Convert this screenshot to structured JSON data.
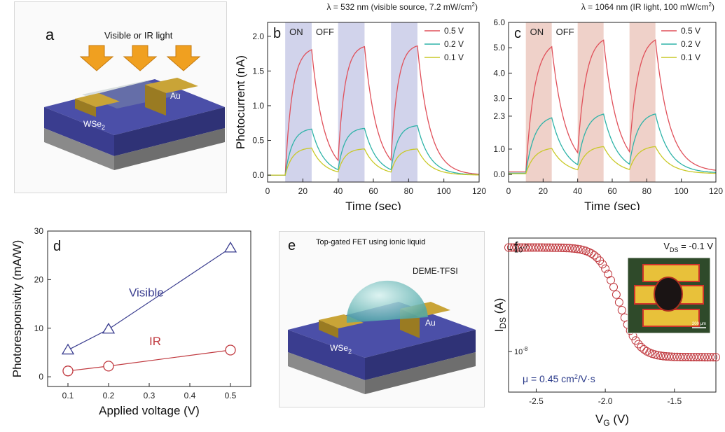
{
  "chart_data": [
    {
      "panel": "a",
      "type": "illustration",
      "label": "a",
      "texts": {
        "light": "Visible or IR light",
        "material": "WSe",
        "material_sub": "2",
        "contact": "Au"
      }
    },
    {
      "panel": "b",
      "type": "line",
      "label": "b",
      "title_parts": [
        "λ = 532 nm (visible source, 7.2 mW/cm",
        "2",
        ")"
      ],
      "xlabel": "Time (sec)",
      "ylabel": "Photocurrent (nA)",
      "xlim": [
        0,
        120
      ],
      "ylim": [
        -0.1,
        2.2
      ],
      "xticks": [
        0,
        20,
        40,
        60,
        80,
        100,
        120
      ],
      "yticks": [
        0.0,
        0.5,
        1.0,
        1.5,
        2.0
      ],
      "on_label": "ON",
      "off_label": "OFF",
      "on_intervals": [
        [
          10,
          25
        ],
        [
          40,
          55
        ],
        [
          70,
          85
        ]
      ],
      "legend_position": "top-right",
      "series": [
        {
          "name": "0.5 V",
          "color": "#e0505a",
          "base": 0.0,
          "amp": [
            1.85,
            1.87,
            1.88
          ],
          "tau_on": 4,
          "tau_off": 7
        },
        {
          "name": "0.2 V",
          "color": "#2eb3a8",
          "base": 0.0,
          "amp": [
            0.68,
            0.68,
            0.72
          ],
          "tau_on": 4,
          "tau_off": 7
        },
        {
          "name": "0.1 V",
          "color": "#c9c928",
          "base": 0.0,
          "amp": [
            0.4,
            0.38,
            0.38
          ],
          "tau_on": 4,
          "tau_off": 7
        }
      ]
    },
    {
      "panel": "c",
      "type": "line",
      "label": "c",
      "title_parts": [
        "λ = 1064 nm (IR light, 100 mW/cm",
        "2",
        ")"
      ],
      "xlabel": "Time (sec)",
      "ylabel": "",
      "xlim": [
        0,
        120
      ],
      "ylim": [
        -0.3,
        6.0
      ],
      "xticks": [
        0,
        20,
        40,
        60,
        80,
        100,
        120
      ],
      "yticks": [
        0.0,
        1.0,
        2.3,
        3.0,
        4.0,
        5.0,
        6.0
      ],
      "on_label": "ON",
      "off_label": "OFF",
      "on_intervals": [
        [
          10,
          25
        ],
        [
          40,
          55
        ],
        [
          70,
          85
        ]
      ],
      "legend_position": "top-right",
      "series": [
        {
          "name": "0.5 V",
          "color": "#e0505a",
          "base": 0.1,
          "amp": [
            5.2,
            5.35,
            5.35
          ],
          "tau_on": 5,
          "tau_off": 8
        },
        {
          "name": "0.2 V",
          "color": "#2eb3a8",
          "base": 0.05,
          "amp": [
            2.3,
            2.4,
            2.4
          ],
          "tau_on": 5,
          "tau_off": 8
        },
        {
          "name": "0.1 V",
          "color": "#c9c928",
          "base": 0.03,
          "amp": [
            1.05,
            1.1,
            1.1
          ],
          "tau_on": 5,
          "tau_off": 8
        }
      ]
    },
    {
      "panel": "d",
      "type": "scatter",
      "label": "d",
      "xlabel": "Applied voltage (V)",
      "ylabel": "Photoresponsivity (mA/W)",
      "xlim": [
        0.05,
        0.55
      ],
      "ylim": [
        -2,
        30
      ],
      "xticks": [
        0.1,
        0.2,
        0.3,
        0.4,
        0.5
      ],
      "yticks": [
        0,
        10,
        20,
        30
      ],
      "series": [
        {
          "name": "Visible",
          "color": "#3a3d8f",
          "marker": "triangle",
          "x": [
            0.1,
            0.2,
            0.5
          ],
          "y": [
            5.5,
            9.8,
            26.5
          ]
        },
        {
          "name": "IR",
          "color": "#c0393f",
          "marker": "circle",
          "x": [
            0.1,
            0.2,
            0.5
          ],
          "y": [
            1.2,
            2.2,
            5.5
          ]
        }
      ]
    },
    {
      "panel": "e",
      "type": "illustration",
      "label": "e",
      "texts": {
        "title": "Top-gated FET using ionic liquid",
        "liquid": "DEME-TFSI",
        "material": "WSe",
        "material_sub": "2",
        "contact": "Au"
      }
    },
    {
      "panel": "f",
      "type": "scatter",
      "label": "f",
      "xlabel_main": "V",
      "xlabel_sub": "G",
      "xlabel_unit": " (V)",
      "ylabel_main": "I",
      "ylabel_sub": "DS",
      "ylabel_unit": " (A)",
      "yscale": "log",
      "xlim": [
        -2.7,
        -1.2
      ],
      "ylim": [
        4e-09,
        1.3e-07
      ],
      "xticks": [
        -2.5,
        -2.0,
        -1.5
      ],
      "xtick_labels": [
        "-2.5",
        "-2.0",
        "-1.5"
      ],
      "ytick_labels": [
        {
          "base": "10",
          "exp": "-7"
        },
        {
          "base": "10",
          "exp": "-8"
        }
      ],
      "vds_label_parts": [
        "V",
        "DS",
        " = -0.1 V"
      ],
      "mobility_parts": [
        "μ = 0.45 cm",
        "2",
        "/V·s"
      ],
      "inset_scale": "200 μm",
      "marker_color": "#c0393f",
      "x_start": -2.7,
      "x_end": -1.2,
      "x_step": 0.02,
      "i_on": 1.05e-07,
      "i_off": 8.8e-09,
      "v_th": -1.9,
      "curve_width": 0.28
    }
  ]
}
